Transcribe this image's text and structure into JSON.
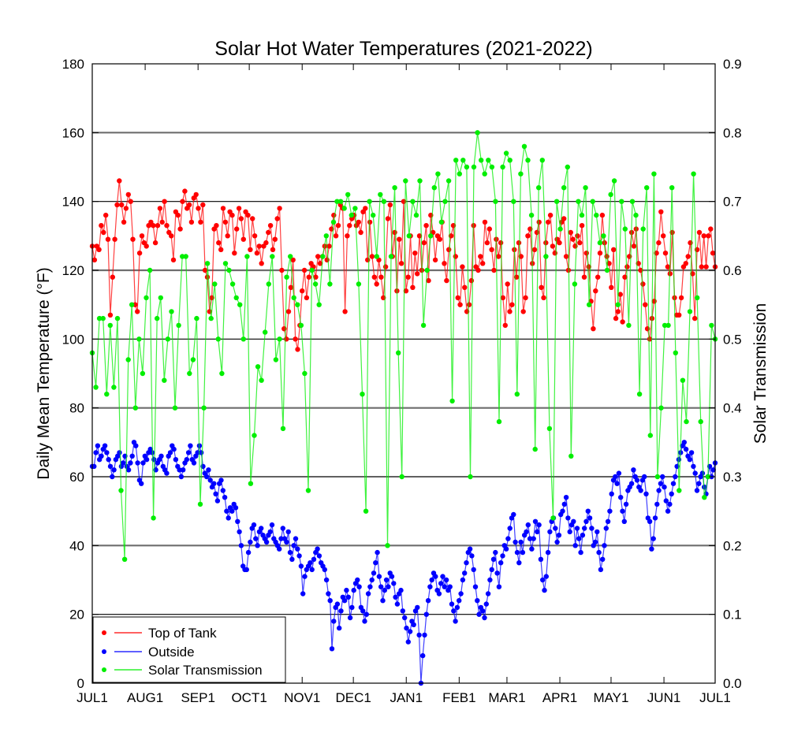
{
  "chart_data": {
    "type": "line",
    "title": "Solar Hot Water Temperatures (2021-2022)",
    "xlabel": "",
    "ylabel": "Daily Mean Temperature (°F)",
    "y2label": "Solar Transmission",
    "ylim": [
      0,
      180
    ],
    "y2lim": [
      0.0,
      0.9
    ],
    "yticks": [
      "0",
      "20",
      "40",
      "60",
      "80",
      "100",
      "120",
      "140",
      "160",
      "180"
    ],
    "y2ticks": [
      "0.0",
      "0.1",
      "0.2",
      "0.3",
      "0.4",
      "0.5",
      "0.6",
      "0.7",
      "0.8",
      "0.9"
    ],
    "xticks": [
      "JUL1",
      "AUG1",
      "SEP1",
      "OCT1",
      "NOV1",
      "DEC1",
      "JAN1",
      "FEB1",
      "MAR1",
      "APR1",
      "MAY1",
      "JUN1",
      "JUL1"
    ],
    "xtick_days": [
      0,
      31,
      62,
      92,
      123,
      153,
      184,
      215,
      243,
      274,
      304,
      335,
      365
    ],
    "grid": true,
    "legend_position": "bottom-left",
    "legend": [
      "Top of Tank",
      "Outside",
      "Solar Transmission"
    ],
    "series": [
      {
        "name": "Top of Tank",
        "axis": "left",
        "color": "#ff0000",
        "x_step_days": 3,
        "values": [
          127,
          123,
          127,
          126,
          133,
          131,
          136,
          129,
          107,
          118,
          129,
          139,
          146,
          139,
          134,
          138,
          142,
          140,
          129,
          110,
          108,
          125,
          130,
          128,
          127,
          133,
          134,
          133,
          128,
          133,
          138,
          134,
          140,
          133,
          131,
          130,
          123,
          137,
          136,
          132,
          140,
          143,
          138,
          139,
          134,
          141,
          142,
          138,
          134,
          139,
          120,
          118,
          108,
          112,
          132,
          133,
          128,
          126,
          138,
          134,
          130,
          137,
          136,
          125,
          132,
          138,
          135,
          129,
          137,
          136,
          126,
          135,
          130,
          125,
          127,
          122,
          127,
          128,
          131,
          133,
          126,
          129,
          135,
          138,
          120,
          103,
          100,
          108,
          115,
          123,
          100,
          97,
          104,
          114,
          120,
          112,
          118,
          122,
          121,
          118,
          124,
          122,
          124,
          127,
          123,
          127,
          132,
          136,
          130,
          133,
          139,
          138,
          108,
          130,
          133,
          135,
          136,
          133,
          134,
          131,
          137,
          138,
          123,
          134,
          124,
          118,
          116,
          123,
          118,
          112,
          121,
          135,
          139,
          124,
          131,
          114,
          129,
          122,
          140,
          114,
          118,
          130,
          115,
          125,
          119,
          130,
          120,
          128,
          133,
          117,
          136,
          131,
          123,
          130,
          129,
          134,
          122,
          117,
          126,
          130,
          133,
          124,
          112,
          110,
          121,
          115,
          108,
          110,
          117,
          133,
          121,
          120,
          124,
          122,
          134,
          128,
          132,
          126,
          120,
          129,
          124,
          128,
          112,
          104,
          116,
          108,
          110,
          126,
          118,
          128,
          124,
          108,
          112,
          130,
          132,
          122,
          126,
          131,
          134,
          115,
          112,
          128,
          134,
          136,
          127,
          125,
          129,
          128,
          134,
          135,
          124,
          120,
          131,
          129,
          127,
          130,
          128,
          133,
          118,
          125,
          121,
          111,
          103,
          114,
          118,
          125,
          136,
          128,
          124,
          122,
          115,
          126,
          106,
          108,
          113,
          105,
          118,
          121,
          124,
          131,
          127,
          132,
          122,
          120,
          116,
          110,
          103,
          100,
          106,
          111,
          125,
          128,
          137,
          130,
          125,
          121,
          119,
          131,
          112,
          107,
          107,
          112,
          121,
          122,
          124,
          128,
          119,
          106,
          126,
          131,
          121,
          130,
          121,
          130,
          132,
          125,
          121
        ]
      },
      {
        "name": "Outside",
        "axis": "left",
        "color": "#0000ff",
        "x_step_days": 1,
        "values": [
          63,
          63,
          67,
          69,
          65,
          66,
          68,
          69,
          67,
          65,
          63,
          60,
          62,
          65,
          66,
          67,
          63,
          64,
          66,
          63,
          62,
          64,
          66,
          70,
          69,
          64,
          59,
          58,
          64,
          66,
          65,
          67,
          68,
          67,
          65,
          62,
          64,
          65,
          66,
          63,
          62,
          61,
          66,
          67,
          69,
          68,
          65,
          63,
          62,
          60,
          62,
          64,
          65,
          67,
          69,
          65,
          64,
          66,
          67,
          69,
          67,
          63,
          61,
          60,
          62,
          59,
          57,
          58,
          55,
          53,
          58,
          59,
          56,
          54,
          50,
          48,
          51,
          50,
          52,
          51,
          47,
          44,
          40,
          34,
          33,
          33,
          38,
          41,
          45,
          46,
          42,
          40,
          44,
          45,
          43,
          42,
          41,
          43,
          44,
          46,
          42,
          41,
          40,
          39,
          42,
          45,
          42,
          41,
          44,
          38,
          36,
          40,
          42,
          39,
          37,
          34,
          26,
          31,
          33,
          34,
          35,
          33,
          36,
          38,
          39,
          37,
          35,
          34,
          33,
          30,
          26,
          24,
          10,
          18,
          22,
          23,
          16,
          21,
          25,
          24,
          27,
          25,
          19,
          22,
          27,
          29,
          30,
          28,
          22,
          21,
          18,
          20,
          26,
          28,
          30,
          32,
          35,
          38,
          31,
          28,
          24,
          27,
          30,
          28,
          32,
          31,
          29,
          25,
          23,
          26,
          27,
          21,
          19,
          16,
          12,
          15,
          18,
          17,
          21,
          22,
          14,
          0,
          8,
          14,
          20,
          24,
          28,
          30,
          32,
          31,
          27,
          26,
          29,
          31,
          28,
          30,
          27,
          28,
          23,
          21,
          18,
          22,
          24,
          26,
          30,
          32,
          35,
          38,
          39,
          37,
          33,
          28,
          24,
          20,
          22,
          21,
          19,
          23,
          26,
          30,
          33,
          36,
          38,
          32,
          28,
          35,
          37,
          40,
          39,
          42,
          45,
          48,
          49,
          41,
          38,
          35,
          41,
          38,
          43,
          44,
          46,
          42,
          39,
          42,
          47,
          44,
          46,
          36,
          30,
          27,
          31,
          38,
          44,
          47,
          48,
          45,
          41,
          43,
          49,
          50,
          52,
          54,
          48,
          44,
          46,
          47,
          40,
          45,
          42,
          38,
          43,
          45,
          47,
          50,
          48,
          45,
          40,
          41,
          44,
          38,
          33,
          36,
          40,
          45,
          47,
          50,
          55,
          59,
          60,
          58,
          61,
          54,
          50,
          47,
          52,
          56,
          57,
          58,
          62,
          60,
          59,
          57,
          56,
          59,
          60,
          55,
          48,
          47,
          39,
          42,
          48,
          52,
          56,
          58,
          60,
          57,
          53,
          50,
          52,
          55,
          58,
          60,
          63,
          65,
          67,
          69,
          70,
          68,
          66,
          65,
          67,
          63,
          61,
          56,
          58,
          60,
          61,
          57,
          55,
          60,
          63,
          60,
          62,
          64
        ]
      },
      {
        "name": "Solar Transmission",
        "axis": "right",
        "color": "#00ee00",
        "x_step_days": 2,
        "values": [
          0.48,
          0.43,
          0.53,
          0.53,
          0.42,
          0.52,
          0.43,
          0.53,
          0.28,
          0.18,
          0.47,
          0.55,
          0.4,
          0.5,
          0.45,
          0.56,
          0.6,
          0.24,
          0.53,
          0.56,
          0.44,
          0.5,
          0.54,
          0.4,
          0.52,
          0.62,
          0.62,
          0.45,
          0.47,
          0.53,
          0.26,
          0.4,
          0.61,
          0.53,
          0.58,
          0.5,
          0.45,
          0.61,
          0.6,
          0.58,
          0.56,
          0.55,
          0.5,
          0.62,
          0.29,
          0.36,
          0.46,
          0.44,
          0.51,
          0.58,
          0.62,
          0.47,
          0.5,
          0.37,
          0.59,
          0.62,
          0.56,
          0.55,
          0.52,
          0.45,
          0.28,
          0.6,
          0.58,
          0.55,
          0.62,
          0.65,
          0.58,
          0.67,
          0.7,
          0.7,
          0.69,
          0.71,
          0.68,
          0.69,
          0.58,
          0.42,
          0.25,
          0.7,
          0.68,
          0.62,
          0.71,
          0.7,
          0.2,
          0.62,
          0.72,
          0.48,
          0.3,
          0.73,
          0.65,
          0.7,
          0.68,
          0.73,
          0.52,
          0.6,
          0.65,
          0.72,
          0.74,
          0.67,
          0.7,
          0.73,
          0.41,
          0.76,
          0.74,
          0.76,
          0.75,
          0.3,
          0.75,
          0.8,
          0.76,
          0.74,
          0.76,
          0.75,
          0.7,
          0.38,
          0.75,
          0.77,
          0.76,
          0.7,
          0.42,
          0.74,
          0.78,
          0.76,
          0.68,
          0.34,
          0.72,
          0.76,
          0.62,
          0.37,
          0.24,
          0.7,
          0.66,
          0.72,
          0.75,
          0.33,
          0.58,
          0.7,
          0.68,
          0.72,
          0.55,
          0.7,
          0.68,
          0.64,
          0.65,
          0.6,
          0.71,
          0.73,
          0.55,
          0.7,
          0.66,
          0.52,
          0.7,
          0.68,
          0.42,
          0.66,
          0.72,
          0.36,
          0.74,
          0.3,
          0.4,
          0.52,
          0.52,
          0.72,
          0.48,
          0.28,
          0.44,
          0.38,
          0.54,
          0.74,
          0.56,
          0.38,
          0.27,
          0.3,
          0.52,
          0.5
        ]
      }
    ]
  }
}
